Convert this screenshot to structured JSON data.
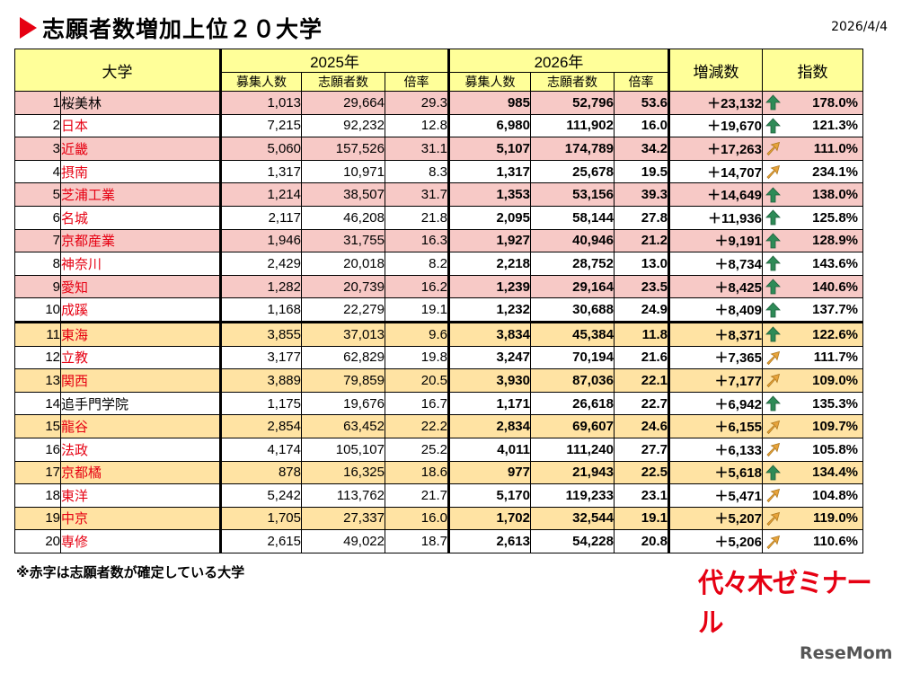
{
  "title": "志願者数増加上位２０大学",
  "date": "2026/4/4",
  "header": {
    "university": "大学",
    "year_2025": "2025年",
    "year_2026": "2026年",
    "change": "増減数",
    "index": "指数",
    "sub_quota": "募集人数",
    "sub_applicants": "志願者数",
    "sub_ratio": "倍率"
  },
  "colors": {
    "pink_row": "#f7c9c6",
    "orange_row": "#ffe3a3",
    "white_row": "#ffffff",
    "red_text": "#e60012",
    "arrow_green": "#2e8b57",
    "arrow_orange": "#e8a43c"
  },
  "rows": [
    {
      "rank": "1",
      "name": "桜美林",
      "red": false,
      "quota25": "1,013",
      "app25": "29,664",
      "ratio25": "29.3",
      "quota26": "985",
      "app26": "52,796",
      "ratio26": "53.6",
      "change": "＋23,132",
      "index": "178.0%",
      "arrow": "up-icon",
      "bg": "pink"
    },
    {
      "rank": "2",
      "name": "日本",
      "red": true,
      "quota25": "7,215",
      "app25": "92,232",
      "ratio25": "12.8",
      "quota26": "6,980",
      "app26": "111,902",
      "ratio26": "16.0",
      "change": "＋19,670",
      "index": "121.3%",
      "arrow": "up-icon",
      "bg": "white"
    },
    {
      "rank": "3",
      "name": "近畿",
      "red": true,
      "quota25": "5,060",
      "app25": "157,526",
      "ratio25": "31.1",
      "quota26": "5,107",
      "app26": "174,789",
      "ratio26": "34.2",
      "change": "＋17,263",
      "index": "111.0%",
      "arrow": "diag-icon",
      "bg": "pink"
    },
    {
      "rank": "4",
      "name": "摂南",
      "red": true,
      "quota25": "1,317",
      "app25": "10,971",
      "ratio25": "8.3",
      "quota26": "1,317",
      "app26": "25,678",
      "ratio26": "19.5",
      "change": "＋14,707",
      "index": "234.1%",
      "arrow": "diag-icon",
      "bg": "white"
    },
    {
      "rank": "5",
      "name": "芝浦工業",
      "red": true,
      "quota25": "1,214",
      "app25": "38,507",
      "ratio25": "31.7",
      "quota26": "1,353",
      "app26": "53,156",
      "ratio26": "39.3",
      "change": "＋14,649",
      "index": "138.0%",
      "arrow": "up-icon",
      "bg": "pink"
    },
    {
      "rank": "6",
      "name": "名城",
      "red": true,
      "quota25": "2,117",
      "app25": "46,208",
      "ratio25": "21.8",
      "quota26": "2,095",
      "app26": "58,144",
      "ratio26": "27.8",
      "change": "＋11,936",
      "index": "125.8%",
      "arrow": "up-icon",
      "bg": "white"
    },
    {
      "rank": "7",
      "name": "京都産業",
      "red": true,
      "quota25": "1,946",
      "app25": "31,755",
      "ratio25": "16.3",
      "quota26": "1,927",
      "app26": "40,946",
      "ratio26": "21.2",
      "change": "＋9,191",
      "index": "128.9%",
      "arrow": "up-icon",
      "bg": "pink"
    },
    {
      "rank": "8",
      "name": "神奈川",
      "red": true,
      "quota25": "2,429",
      "app25": "20,018",
      "ratio25": "8.2",
      "quota26": "2,218",
      "app26": "28,752",
      "ratio26": "13.0",
      "change": "＋8,734",
      "index": "143.6%",
      "arrow": "up-icon",
      "bg": "white"
    },
    {
      "rank": "9",
      "name": "愛知",
      "red": true,
      "quota25": "1,282",
      "app25": "20,739",
      "ratio25": "16.2",
      "quota26": "1,239",
      "app26": "29,164",
      "ratio26": "23.5",
      "change": "＋8,425",
      "index": "140.6%",
      "arrow": "up-icon",
      "bg": "pink"
    },
    {
      "rank": "10",
      "name": "成蹊",
      "red": true,
      "quota25": "1,168",
      "app25": "22,279",
      "ratio25": "19.1",
      "quota26": "1,232",
      "app26": "30,688",
      "ratio26": "24.9",
      "change": "＋8,409",
      "index": "137.7%",
      "arrow": "up-icon",
      "bg": "white"
    },
    {
      "rank": "11",
      "name": "東海",
      "red": true,
      "quota25": "3,855",
      "app25": "37,013",
      "ratio25": "9.6",
      "quota26": "3,834",
      "app26": "45,384",
      "ratio26": "11.8",
      "change": "＋8,371",
      "index": "122.6%",
      "arrow": "up-icon",
      "bg": "orange"
    },
    {
      "rank": "12",
      "name": "立教",
      "red": true,
      "quota25": "3,177",
      "app25": "62,829",
      "ratio25": "19.8",
      "quota26": "3,247",
      "app26": "70,194",
      "ratio26": "21.6",
      "change": "＋7,365",
      "index": "111.7%",
      "arrow": "diag-icon",
      "bg": "white"
    },
    {
      "rank": "13",
      "name": "関西",
      "red": true,
      "quota25": "3,889",
      "app25": "79,859",
      "ratio25": "20.5",
      "quota26": "3,930",
      "app26": "87,036",
      "ratio26": "22.1",
      "change": "＋7,177",
      "index": "109.0%",
      "arrow": "diag-icon",
      "bg": "orange"
    },
    {
      "rank": "14",
      "name": "追手門学院",
      "red": false,
      "quota25": "1,175",
      "app25": "19,676",
      "ratio25": "16.7",
      "quota26": "1,171",
      "app26": "26,618",
      "ratio26": "22.7",
      "change": "＋6,942",
      "index": "135.3%",
      "arrow": "up-icon",
      "bg": "white"
    },
    {
      "rank": "15",
      "name": "龍谷",
      "red": true,
      "quota25": "2,854",
      "app25": "63,452",
      "ratio25": "22.2",
      "quota26": "2,834",
      "app26": "69,607",
      "ratio26": "24.6",
      "change": "＋6,155",
      "index": "109.7%",
      "arrow": "diag-icon",
      "bg": "orange"
    },
    {
      "rank": "16",
      "name": "法政",
      "red": true,
      "quota25": "4,174",
      "app25": "105,107",
      "ratio25": "25.2",
      "quota26": "4,011",
      "app26": "111,240",
      "ratio26": "27.7",
      "change": "＋6,133",
      "index": "105.8%",
      "arrow": "diag-icon",
      "bg": "white"
    },
    {
      "rank": "17",
      "name": "京都橘",
      "red": true,
      "quota25": "878",
      "app25": "16,325",
      "ratio25": "18.6",
      "quota26": "977",
      "app26": "21,943",
      "ratio26": "22.5",
      "change": "＋5,618",
      "index": "134.4%",
      "arrow": "up-icon",
      "bg": "orange"
    },
    {
      "rank": "18",
      "name": "東洋",
      "red": true,
      "quota25": "5,242",
      "app25": "113,762",
      "ratio25": "21.7",
      "quota26": "5,170",
      "app26": "119,233",
      "ratio26": "23.1",
      "change": "＋5,471",
      "index": "104.8%",
      "arrow": "diag-icon",
      "bg": "white"
    },
    {
      "rank": "19",
      "name": "中京",
      "red": true,
      "quota25": "1,705",
      "app25": "27,337",
      "ratio25": "16.0",
      "quota26": "1,702",
      "app26": "32,544",
      "ratio26": "19.1",
      "change": "＋5,207",
      "index": "119.0%",
      "arrow": "diag-icon",
      "bg": "orange"
    },
    {
      "rank": "20",
      "name": "専修",
      "red": true,
      "quota25": "2,615",
      "app25": "49,022",
      "ratio25": "18.7",
      "quota26": "2,613",
      "app26": "54,228",
      "ratio26": "20.8",
      "change": "＋5,206",
      "index": "110.6%",
      "arrow": "diag-icon",
      "bg": "white"
    }
  ],
  "note": "※赤字は志願者数が確定している大学",
  "logo_text": "代々木ゼミナール",
  "watermark_text": "ReseMom"
}
